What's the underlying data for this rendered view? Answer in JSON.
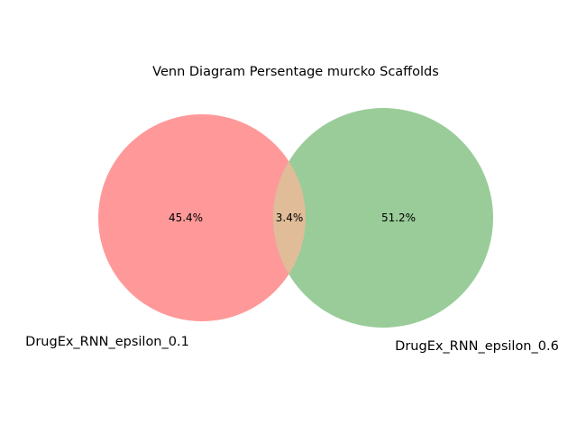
{
  "title": "Venn Diagram Persentage murcko Scaffolds",
  "sets": [
    {
      "name": "DrugEx_RNN_epsilon_0.1",
      "color": "#ff9999"
    },
    {
      "name": "DrugEx_RNN_epsilon_0.6",
      "color": "#99cc99"
    }
  ],
  "intersection_color": "#e0bc99",
  "regions": {
    "only_a": "45.4%",
    "overlap": "3.4%",
    "only_b": "51.2%"
  }
}
